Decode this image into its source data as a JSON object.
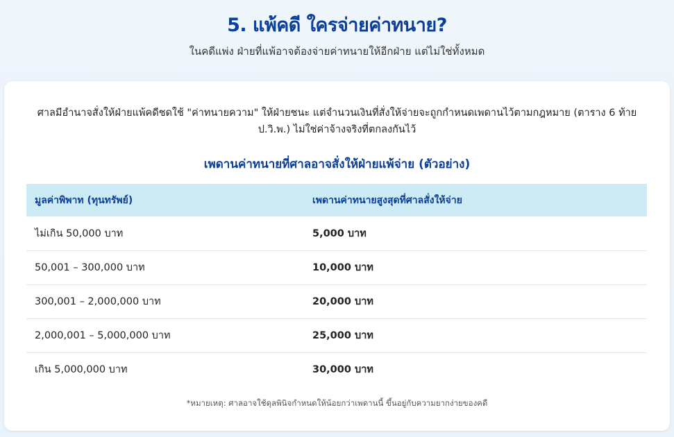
{
  "header": {
    "title": "5. แพ้คดี ใครจ่ายค่าทนาย?",
    "subtitle": "ในคดีแพ่ง ฝ่ายที่แพ้อาจต้องจ่ายค่าทนายให้อีกฝ่าย แต่ไม่ใช่ทั้งหมด"
  },
  "card": {
    "intro": "ศาลมีอำนาจสั่งให้ฝ่ายแพ้คดีชดใช้ \"ค่าทนายความ\" ให้ฝ่ายชนะ แต่จำนวนเงินที่สั่งให้จ่ายจะถูกกำหนดเพดานไว้ตามกฎหมาย (ตาราง 6 ท้าย ป.วิ.พ.) ไม่ใช่ค่าจ้างจริงที่ตกลงกันไว้",
    "table_title": "เพดานค่าทนายที่ศาลอาจสั่งให้ฝ่ายแพ้จ่าย (ตัวอย่าง)",
    "columns": [
      "มูลค่าพิพาท (ทุนทรัพย์)",
      "เพดานค่าทนายสูงสุดที่ศาลสั่งให้จ่าย"
    ],
    "rows": [
      [
        "ไม่เกิน 50,000 บาท",
        "5,000 บาท"
      ],
      [
        "50,001 – 300,000 บาท",
        "10,000 บาท"
      ],
      [
        "300,001 – 2,000,000 บาท",
        "20,000 บาท"
      ],
      [
        "2,000,001 – 5,000,000 บาท",
        "25,000 บาท"
      ],
      [
        "เกิน 5,000,000 บาท",
        "30,000 บาท"
      ]
    ],
    "note": "*หมายเหตุ: ศาลอาจใช้ดุลพินิจกำหนดให้น้อยกว่าเพดานนี้ ขึ้นอยู่กับความยากง่ายของคดี"
  },
  "colors": {
    "accent": "#0b3f9a",
    "header_bg": "#cdebf5"
  }
}
